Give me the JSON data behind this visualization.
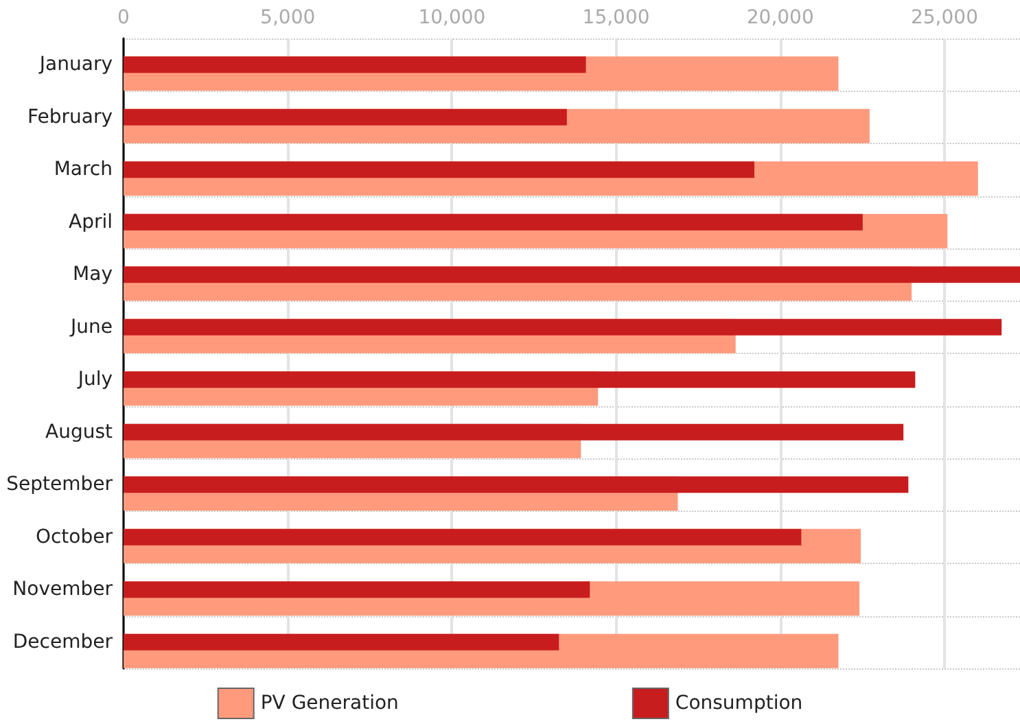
{
  "chart_data": {
    "type": "bar",
    "orientation": "horizontal",
    "categories": [
      "January",
      "February",
      "March",
      "April",
      "May",
      "June",
      "July",
      "August",
      "September",
      "October",
      "November",
      "December"
    ],
    "series": [
      {
        "name": "PV Generation",
        "color": "#ff9a7d",
        "values": [
          21770,
          22720,
          26020,
          25090,
          24000,
          18640,
          14450,
          13930,
          16880,
          22450,
          22410,
          21770
        ]
      },
      {
        "name": "Consumption",
        "color": "#c81d1e",
        "values": [
          14080,
          13500,
          19210,
          22510,
          27300,
          26740,
          24110,
          23750,
          23900,
          20640,
          14200,
          13260
        ]
      }
    ],
    "xlim": [
      0,
      27300
    ],
    "xticks": [
      {
        "value": 0,
        "label": "0"
      },
      {
        "value": 5000,
        "label": "5,000"
      },
      {
        "value": 10000,
        "label": "10,000"
      },
      {
        "value": 15000,
        "label": "15,000"
      },
      {
        "value": 20000,
        "label": "20,000"
      },
      {
        "value": 25000,
        "label": "25,000"
      }
    ],
    "grid": true,
    "legend": "bottom"
  }
}
